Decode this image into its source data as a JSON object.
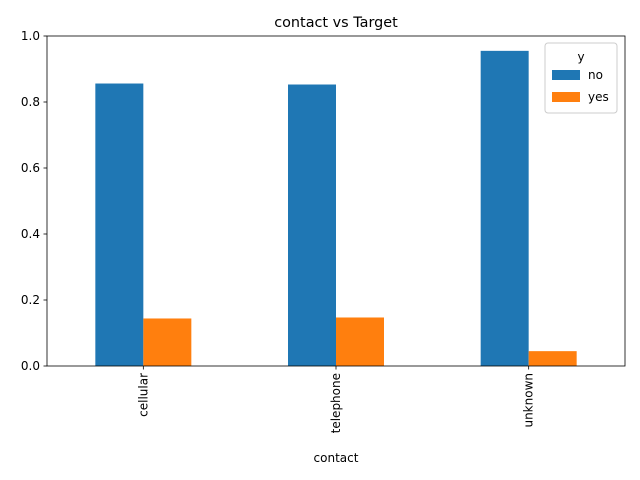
{
  "chart_data": {
    "type": "bar",
    "title": "contact vs Target",
    "xlabel": "contact",
    "ylabel": "",
    "categories": [
      "cellular",
      "telephone",
      "unknown"
    ],
    "series": [
      {
        "name": "no",
        "color": "#1f77b4",
        "values": [
          0.856,
          0.853,
          0.955
        ]
      },
      {
        "name": "yes",
        "color": "#ff7f0e",
        "values": [
          0.144,
          0.147,
          0.045
        ]
      }
    ],
    "ylim": [
      0,
      1.0
    ],
    "yticks": [
      "0.0",
      "0.2",
      "0.4",
      "0.6",
      "0.8",
      "1.0"
    ],
    "grid": false,
    "legend": {
      "title": "y",
      "placement": "top-right"
    }
  }
}
